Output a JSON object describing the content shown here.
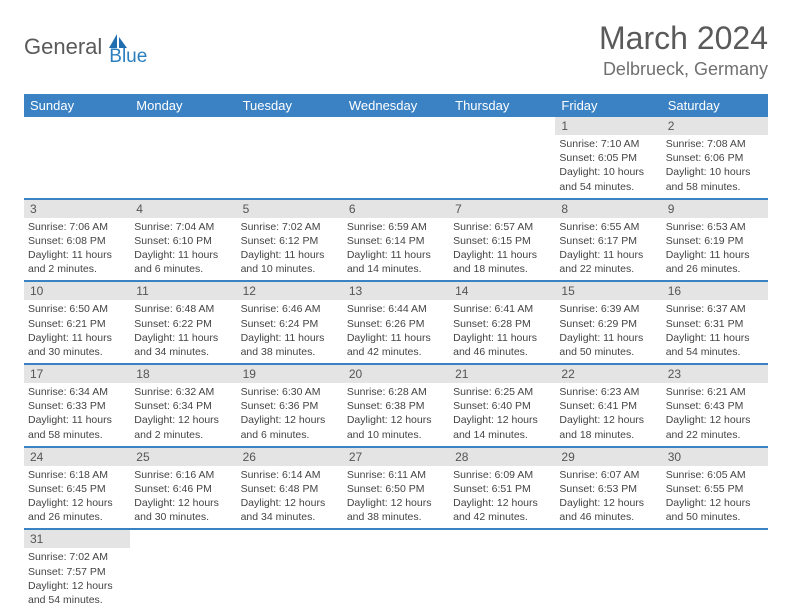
{
  "brand": {
    "general": "General",
    "blue": "Blue"
  },
  "title": {
    "month": "March 2024",
    "location": "Delbrueck, Germany"
  },
  "colors": {
    "header_bg": "#3a82c4",
    "header_fg": "#ffffff",
    "daynum_bg": "#e4e4e4",
    "row_divider": "#3a82c4",
    "text": "#444444",
    "logo_blue": "#2b7fbf",
    "logo_gray": "#5a5a5a"
  },
  "weekdays": [
    "Sunday",
    "Monday",
    "Tuesday",
    "Wednesday",
    "Thursday",
    "Friday",
    "Saturday"
  ],
  "weeks": [
    [
      null,
      null,
      null,
      null,
      null,
      {
        "n": "1",
        "sunrise": "7:10 AM",
        "sunset": "6:05 PM",
        "daylight": "10 hours and 54 minutes."
      },
      {
        "n": "2",
        "sunrise": "7:08 AM",
        "sunset": "6:06 PM",
        "daylight": "10 hours and 58 minutes."
      }
    ],
    [
      {
        "n": "3",
        "sunrise": "7:06 AM",
        "sunset": "6:08 PM",
        "daylight": "11 hours and 2 minutes."
      },
      {
        "n": "4",
        "sunrise": "7:04 AM",
        "sunset": "6:10 PM",
        "daylight": "11 hours and 6 minutes."
      },
      {
        "n": "5",
        "sunrise": "7:02 AM",
        "sunset": "6:12 PM",
        "daylight": "11 hours and 10 minutes."
      },
      {
        "n": "6",
        "sunrise": "6:59 AM",
        "sunset": "6:14 PM",
        "daylight": "11 hours and 14 minutes."
      },
      {
        "n": "7",
        "sunrise": "6:57 AM",
        "sunset": "6:15 PM",
        "daylight": "11 hours and 18 minutes."
      },
      {
        "n": "8",
        "sunrise": "6:55 AM",
        "sunset": "6:17 PM",
        "daylight": "11 hours and 22 minutes."
      },
      {
        "n": "9",
        "sunrise": "6:53 AM",
        "sunset": "6:19 PM",
        "daylight": "11 hours and 26 minutes."
      }
    ],
    [
      {
        "n": "10",
        "sunrise": "6:50 AM",
        "sunset": "6:21 PM",
        "daylight": "11 hours and 30 minutes."
      },
      {
        "n": "11",
        "sunrise": "6:48 AM",
        "sunset": "6:22 PM",
        "daylight": "11 hours and 34 minutes."
      },
      {
        "n": "12",
        "sunrise": "6:46 AM",
        "sunset": "6:24 PM",
        "daylight": "11 hours and 38 minutes."
      },
      {
        "n": "13",
        "sunrise": "6:44 AM",
        "sunset": "6:26 PM",
        "daylight": "11 hours and 42 minutes."
      },
      {
        "n": "14",
        "sunrise": "6:41 AM",
        "sunset": "6:28 PM",
        "daylight": "11 hours and 46 minutes."
      },
      {
        "n": "15",
        "sunrise": "6:39 AM",
        "sunset": "6:29 PM",
        "daylight": "11 hours and 50 minutes."
      },
      {
        "n": "16",
        "sunrise": "6:37 AM",
        "sunset": "6:31 PM",
        "daylight": "11 hours and 54 minutes."
      }
    ],
    [
      {
        "n": "17",
        "sunrise": "6:34 AM",
        "sunset": "6:33 PM",
        "daylight": "11 hours and 58 minutes."
      },
      {
        "n": "18",
        "sunrise": "6:32 AM",
        "sunset": "6:34 PM",
        "daylight": "12 hours and 2 minutes."
      },
      {
        "n": "19",
        "sunrise": "6:30 AM",
        "sunset": "6:36 PM",
        "daylight": "12 hours and 6 minutes."
      },
      {
        "n": "20",
        "sunrise": "6:28 AM",
        "sunset": "6:38 PM",
        "daylight": "12 hours and 10 minutes."
      },
      {
        "n": "21",
        "sunrise": "6:25 AM",
        "sunset": "6:40 PM",
        "daylight": "12 hours and 14 minutes."
      },
      {
        "n": "22",
        "sunrise": "6:23 AM",
        "sunset": "6:41 PM",
        "daylight": "12 hours and 18 minutes."
      },
      {
        "n": "23",
        "sunrise": "6:21 AM",
        "sunset": "6:43 PM",
        "daylight": "12 hours and 22 minutes."
      }
    ],
    [
      {
        "n": "24",
        "sunrise": "6:18 AM",
        "sunset": "6:45 PM",
        "daylight": "12 hours and 26 minutes."
      },
      {
        "n": "25",
        "sunrise": "6:16 AM",
        "sunset": "6:46 PM",
        "daylight": "12 hours and 30 minutes."
      },
      {
        "n": "26",
        "sunrise": "6:14 AM",
        "sunset": "6:48 PM",
        "daylight": "12 hours and 34 minutes."
      },
      {
        "n": "27",
        "sunrise": "6:11 AM",
        "sunset": "6:50 PM",
        "daylight": "12 hours and 38 minutes."
      },
      {
        "n": "28",
        "sunrise": "6:09 AM",
        "sunset": "6:51 PM",
        "daylight": "12 hours and 42 minutes."
      },
      {
        "n": "29",
        "sunrise": "6:07 AM",
        "sunset": "6:53 PM",
        "daylight": "12 hours and 46 minutes."
      },
      {
        "n": "30",
        "sunrise": "6:05 AM",
        "sunset": "6:55 PM",
        "daylight": "12 hours and 50 minutes."
      }
    ],
    [
      {
        "n": "31",
        "sunrise": "7:02 AM",
        "sunset": "7:57 PM",
        "daylight": "12 hours and 54 minutes."
      },
      null,
      null,
      null,
      null,
      null,
      null
    ]
  ],
  "labels": {
    "sunrise_prefix": "Sunrise: ",
    "sunset_prefix": "Sunset: ",
    "daylight_prefix": "Daylight: "
  }
}
